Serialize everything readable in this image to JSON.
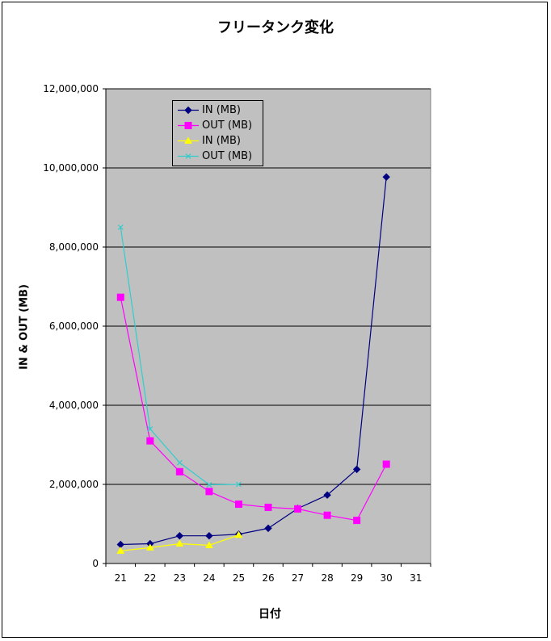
{
  "chart_data": {
    "type": "line",
    "title": "フリータンク変化",
    "xlabel": "日付",
    "ylabel": "IN & OUT (MB)",
    "categories": [
      "21",
      "22",
      "23",
      "24",
      "25",
      "26",
      "27",
      "28",
      "29",
      "30",
      "31"
    ],
    "ylim": [
      0,
      12000000
    ],
    "yticks": [
      "0",
      "2,000,000",
      "4,000,000",
      "6,000,000",
      "8,000,000",
      "10,000,000",
      "12,000,000"
    ],
    "ytick_values": [
      0,
      2000000,
      4000000,
      6000000,
      8000000,
      10000000,
      12000000
    ],
    "grid": true,
    "legend_position": "top-left",
    "series": [
      {
        "name": "IN (MB)",
        "color": "#000080",
        "marker": "diamond",
        "values": [
          480000,
          500000,
          700000,
          700000,
          740000,
          890000,
          1390000,
          1730000,
          2380000,
          9770000,
          null
        ]
      },
      {
        "name": "OUT (MB)",
        "color": "#ff00ff",
        "marker": "square",
        "values": [
          6730000,
          3100000,
          2320000,
          1820000,
          1500000,
          1420000,
          1380000,
          1220000,
          1090000,
          2510000,
          null
        ]
      },
      {
        "name": "IN (MB)",
        "color": "#ffff00",
        "marker": "triangle",
        "values": [
          320000,
          400000,
          500000,
          460000,
          720000,
          null,
          null,
          null,
          null,
          null,
          null
        ]
      },
      {
        "name": "OUT (MB)",
        "color": "#33cccc",
        "marker": "x",
        "values": [
          8500000,
          3400000,
          2550000,
          1990000,
          2000000,
          null,
          null,
          null,
          null,
          null,
          null
        ]
      }
    ]
  }
}
